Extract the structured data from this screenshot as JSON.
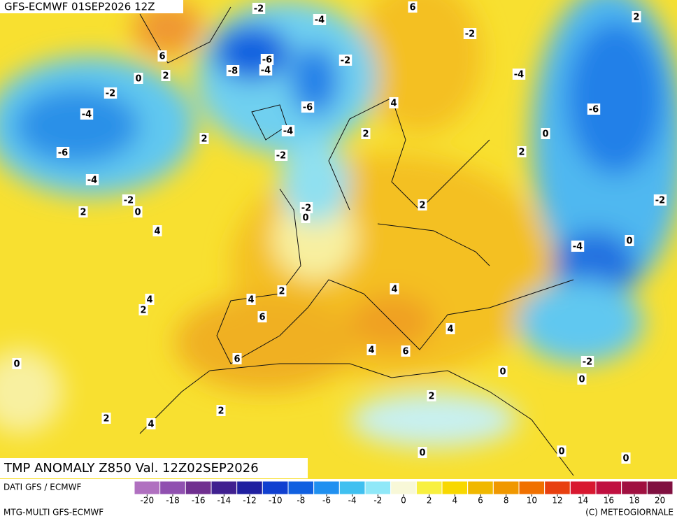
{
  "header": {
    "title": "GFS-ECMWF 01SEP2026 12Z"
  },
  "map": {
    "contour_labels": [
      -2,
      6,
      -4,
      2,
      -2,
      6,
      2,
      -6,
      -4,
      -8,
      -2,
      0,
      -4,
      -2,
      -4,
      -6,
      4,
      -6,
      -4,
      2,
      0,
      2,
      -6,
      -2,
      2,
      -4,
      -2,
      -2,
      -2,
      2,
      2,
      0,
      0,
      4,
      0,
      -4,
      2,
      4,
      4,
      4,
      2,
      6,
      4,
      4,
      6,
      6,
      0,
      -2,
      0,
      0,
      2,
      2,
      2,
      4,
      0,
      0,
      0
    ]
  },
  "footer": {
    "field": "TMP ANOMALY Z850 Val. 12Z02SEP2026",
    "source": "DATI GFS / ECMWF",
    "model": "MTG-MULTI GFS-ECMWF",
    "credit": "(C) METEOGIORNALE"
  },
  "colorbar": {
    "range": [
      -21,
      21
    ],
    "colors": [
      "#b070c0",
      "#9050b0",
      "#703090",
      "#402090",
      "#2020a0",
      "#1040d0",
      "#1060e0",
      "#2090f0",
      "#40c0f0",
      "#90e8f8",
      "#f8f8d8",
      "#f8f040",
      "#f8d800",
      "#f0b800",
      "#f09800",
      "#f07000",
      "#e84010",
      "#d81830",
      "#c01040",
      "#a01040",
      "#801040"
    ],
    "ticks": [
      -20,
      -18,
      -16,
      -14,
      -12,
      -10,
      -8,
      -6,
      -4,
      -2,
      0,
      2,
      4,
      6,
      8,
      10,
      12,
      14,
      16,
      18,
      20
    ]
  }
}
